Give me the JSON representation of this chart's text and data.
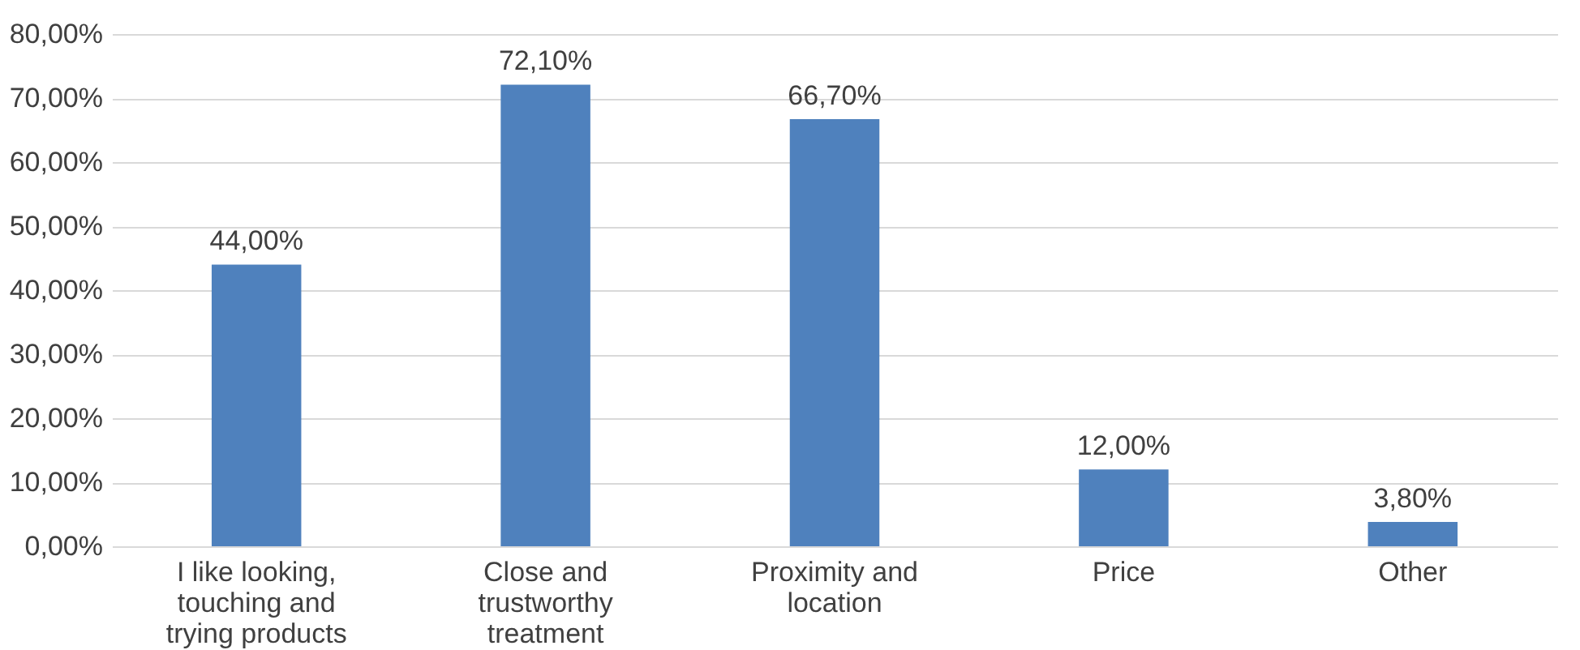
{
  "chart_data": {
    "type": "bar",
    "categories": [
      "I like looking, touching and trying products",
      "Close and trustworthy treatment",
      "Proximity and location",
      "Price",
      "Other"
    ],
    "values": [
      44.0,
      72.1,
      66.7,
      12.0,
      3.8
    ],
    "value_labels": [
      "44,00%",
      "72,10%",
      "66,70%",
      "12,00%",
      "3,80%"
    ],
    "color": "#4f81bd",
    "ylim": [
      0,
      80
    ],
    "yticks": [
      {
        "value": 0,
        "label": "0,00%"
      },
      {
        "value": 10,
        "label": "10,00%"
      },
      {
        "value": 20,
        "label": "20,00%"
      },
      {
        "value": 30,
        "label": "30,00%"
      },
      {
        "value": 40,
        "label": "40,00%"
      },
      {
        "value": 50,
        "label": "50,00%"
      },
      {
        "value": 60,
        "label": "60,00%"
      },
      {
        "value": 70,
        "label": "70,00%"
      },
      {
        "value": 80,
        "label": "80,00%"
      }
    ],
    "grid": "y"
  }
}
